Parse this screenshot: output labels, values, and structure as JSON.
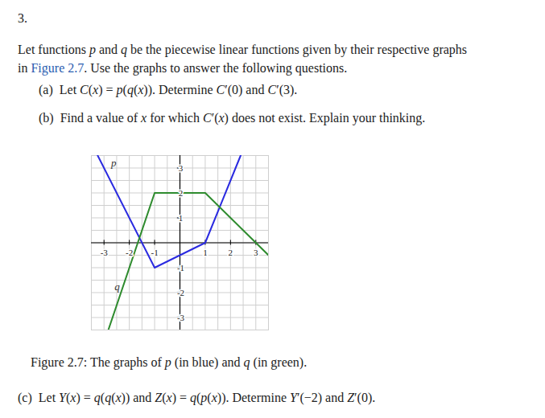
{
  "document": {
    "number": "3.",
    "intro": [
      [
        "Let functions ",
        {
          "i": "p"
        },
        " and ",
        {
          "i": "q"
        },
        " be the piecewise linear functions given by their respective graphs"
      ],
      [
        "in ",
        {
          "link": "Figure 2.7"
        },
        ". Use the graphs to answer the following questions."
      ]
    ],
    "parts": [
      {
        "label": "(a)",
        "text": [
          "Let ",
          {
            "i": "C"
          },
          "(",
          {
            "i": "x"
          },
          ") = ",
          {
            "i": "p"
          },
          "(",
          {
            "i": "q"
          },
          "(",
          {
            "i": "x"
          },
          ")). Determine ",
          {
            "i": "C"
          },
          "′(0) and ",
          {
            "i": "C"
          },
          "′(3)."
        ]
      },
      {
        "label": "(b)",
        "text": [
          "Find a value of ",
          {
            "i": "x"
          },
          " for which ",
          {
            "i": "C"
          },
          "′(",
          {
            "i": "x"
          },
          ") does not exist. Explain your thinking."
        ]
      }
    ],
    "caption": [
      "Figure 2.7: The graphs of ",
      {
        "i": "p"
      },
      " (in blue) and ",
      {
        "i": "q"
      },
      " (in green)."
    ],
    "after": [
      {
        "label": "(c)",
        "text": [
          "Let ",
          {
            "i": "Y"
          },
          "(",
          {
            "i": "x"
          },
          ") = ",
          {
            "i": "q"
          },
          "(",
          {
            "i": "q"
          },
          "(",
          {
            "i": "x"
          },
          ")) and ",
          {
            "i": "Z"
          },
          "(",
          {
            "i": "x"
          },
          ") = ",
          {
            "i": "q"
          },
          "(",
          {
            "i": "p"
          },
          "(",
          {
            "i": "x"
          },
          ")). Determine ",
          {
            "i": "Y"
          },
          "′(−2) and ",
          {
            "i": "Z"
          },
          "′(0)."
        ]
      }
    ]
  },
  "chart_data": {
    "type": "line",
    "xlim": [
      -3.5,
      3.5
    ],
    "ylim": [
      -3.5,
      3.5
    ],
    "xticks": [
      -3,
      -2,
      -1,
      1,
      2,
      3
    ],
    "yticks": [
      -3,
      -2,
      -1,
      1,
      2,
      3
    ],
    "grid": true,
    "tick_labels": true,
    "series": [
      {
        "name": "p",
        "color": "#2a2ae0",
        "x": [
          -3.25,
          -1,
          1,
          2.4
        ],
        "values": [
          3.5,
          -1,
          0,
          3.5
        ]
      },
      {
        "name": "q",
        "color": "#2e8b2e",
        "x": [
          -2.83,
          -1,
          1,
          3.5
        ],
        "values": [
          -3.5,
          2,
          2,
          -0.5
        ]
      }
    ]
  }
}
